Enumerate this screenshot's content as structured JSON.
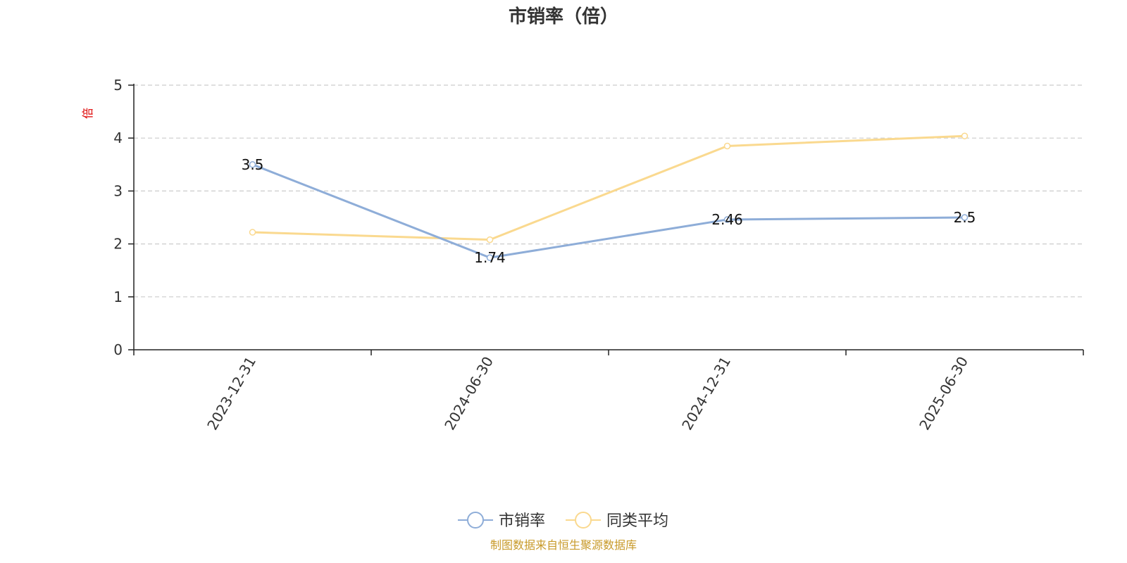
{
  "colors": {
    "series1": "#8eadd8",
    "series2": "#fad98f",
    "axis": "#222222",
    "grid": "#cccccc",
    "ylabel": "#dd0000",
    "source": "#c89a2a"
  },
  "legend_icon": "circle-line-marker",
  "chart_data": {
    "type": "line",
    "title": "市销率（倍）",
    "xlabel": "",
    "ylabel": "倍",
    "categories": [
      "2023-12-31",
      "2024-06-30",
      "2024-12-31",
      "2025-06-30"
    ],
    "ylim": [
      0,
      5
    ],
    "yticks": [
      "0",
      "1",
      "2",
      "3",
      "4",
      "5"
    ],
    "grid": "horizontal-dashed",
    "legend_position": "bottom-center",
    "series": [
      {
        "name": "市销率",
        "values": [
          3.5,
          1.74,
          2.46,
          2.5
        ],
        "labels": [
          "3.5",
          "1.74",
          "2.46",
          "2.5"
        ]
      },
      {
        "name": "同类平均",
        "values": [
          2.22,
          2.08,
          3.85,
          4.04
        ]
      }
    ]
  },
  "source_note": "制图数据来自恒生聚源数据库"
}
